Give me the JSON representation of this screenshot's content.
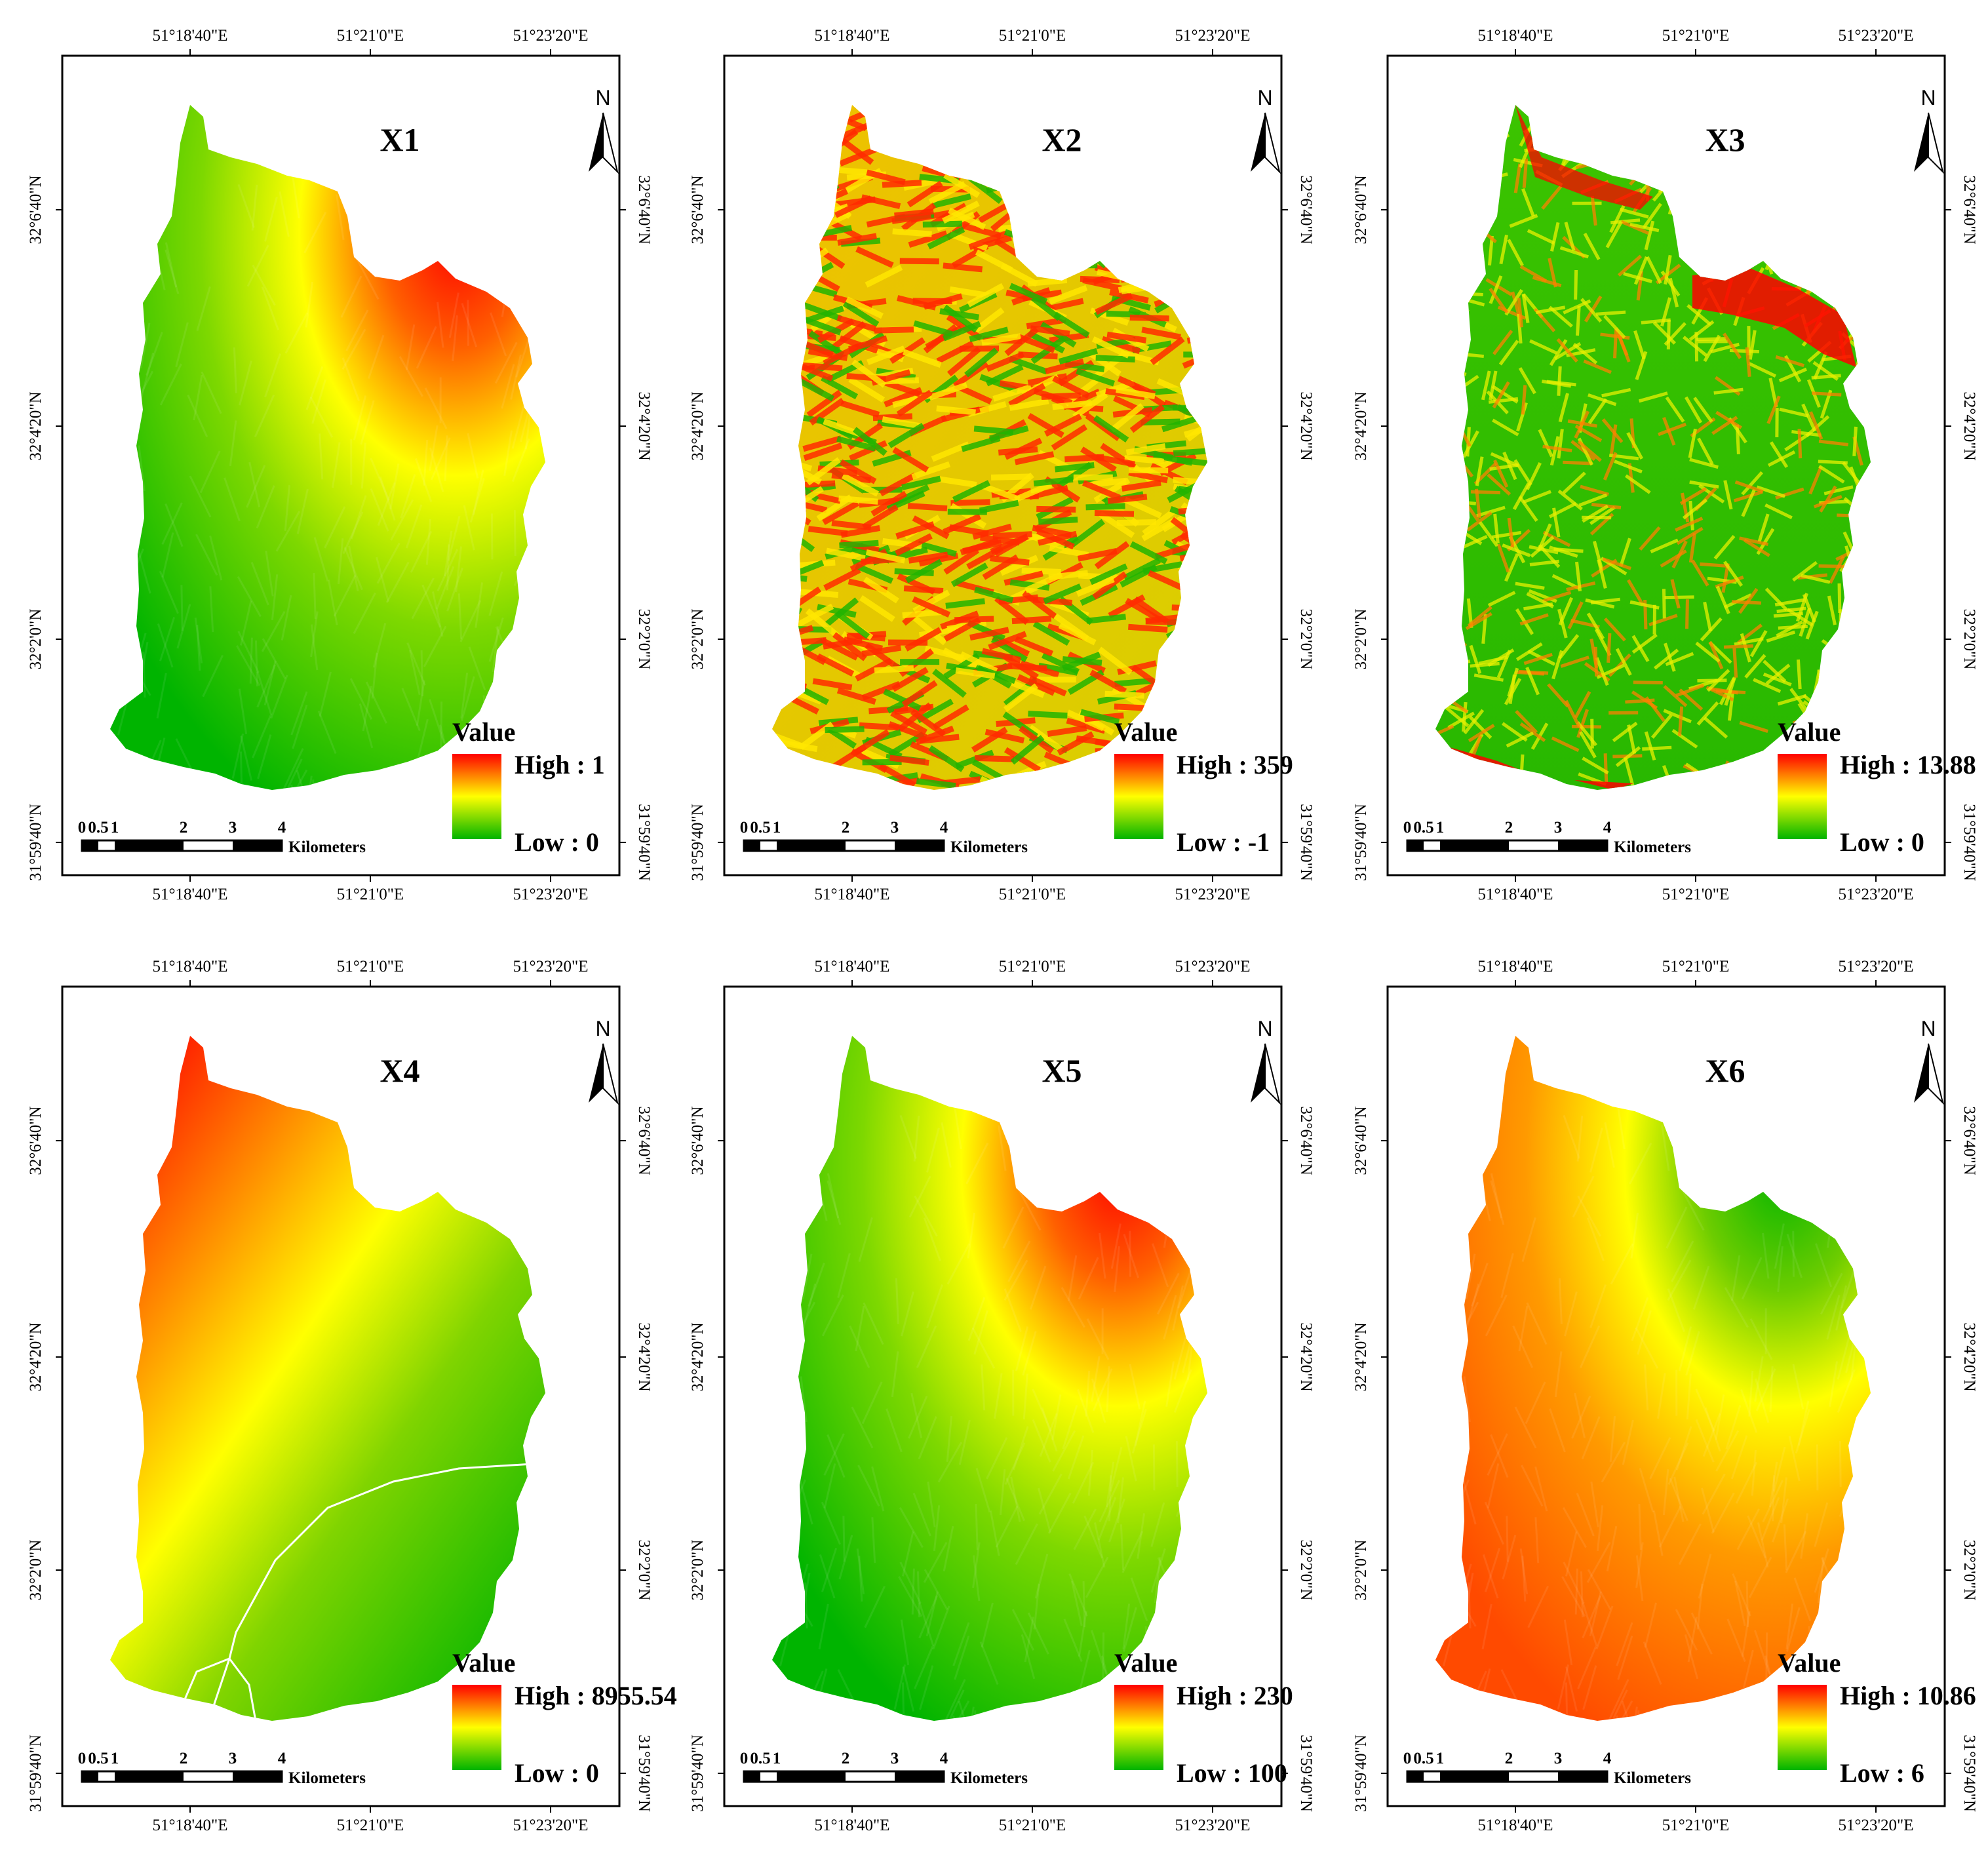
{
  "coordinates": {
    "x_ticks": [
      "51°18'40\"E",
      "51°21'0\"E",
      "51°23'20\"E"
    ],
    "y_ticks": [
      "31°59'40\"N",
      "32°2'0\"N",
      "32°4'20\"N",
      "32°6'40\"N"
    ]
  },
  "north_arrow": {
    "label": "N",
    "icon": "north-arrow-icon"
  },
  "legend": {
    "heading": "Value"
  },
  "scale_bar": {
    "ticks": [
      "0",
      "0.5",
      "1",
      "2",
      "3",
      "4"
    ],
    "unit": "Kilometers"
  },
  "colors": {
    "high": "#ff0000",
    "mid": "#ffff00",
    "low": "#00b400",
    "frame": "#000000"
  },
  "panels": [
    {
      "title": "X1",
      "high": "High : 1",
      "low": "Low : 0",
      "pattern": "elevation"
    },
    {
      "title": "X2",
      "high": "High : 359",
      "low": "Low : -1",
      "pattern": "aspect"
    },
    {
      "title": "X3",
      "high": "High : 13.88",
      "low": "Low : 0",
      "pattern": "slope"
    },
    {
      "title": "X4",
      "high": "High : 8955.54",
      "low": "Low : 0",
      "pattern": "distance"
    },
    {
      "title": "X5",
      "high": "High : 230",
      "low": "Low : 100",
      "pattern": "elevation"
    },
    {
      "title": "X6",
      "high": "High : 10.86",
      "low": "Low : 6",
      "pattern": "inverse"
    }
  ]
}
